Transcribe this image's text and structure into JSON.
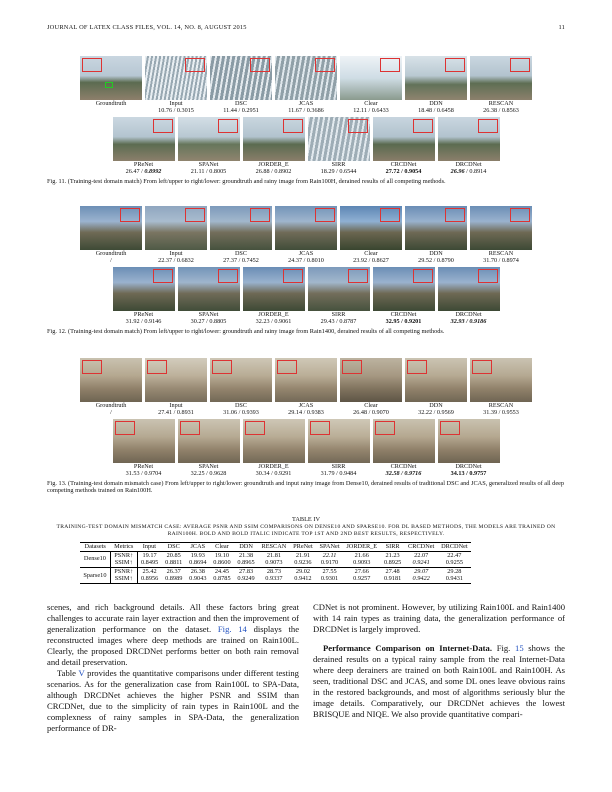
{
  "header": {
    "journal": "JOURNAL OF LATEX CLASS FILES, VOL. 14, NO. 8, AUGUST 2015",
    "page_number": "11"
  },
  "fig11": {
    "row1": [
      {
        "name": "Groundtruth",
        "score": ""
      },
      {
        "name": "Input",
        "score": "10.76 / 0.3015"
      },
      {
        "name": "DSC",
        "score": "11.44 / 0.2951"
      },
      {
        "name": "JCAS",
        "score": "11.67 / 0.3686"
      },
      {
        "name": "Clear",
        "score": "12.11 / 0.6433"
      },
      {
        "name": "DDN",
        "score": "18.48 / 0.6458"
      },
      {
        "name": "RESCAN",
        "score": "26.38 / 0.8563"
      }
    ],
    "row2": [
      {
        "name": "PReNet",
        "psnr": "26.47 / ",
        "ssim": "0.8992"
      },
      {
        "name": "SPANet",
        "psnr": "21.11 / 0.8005",
        "ssim": ""
      },
      {
        "name": "JORDER_E",
        "psnr": "26.88 / 0.8902",
        "ssim": ""
      },
      {
        "name": "SIRR",
        "psnr": "18.29 / 0.6544",
        "ssim": ""
      },
      {
        "name": "CRCDNet",
        "psnr": "27.72 / 0.9054",
        "ssim": ""
      },
      {
        "name": "DRCDNet",
        "psnr": "26.96",
        "ssim": " / 0.8914"
      }
    ],
    "caption": "Fig. 11.  (Training-test domain match) From left/upper to right/lower: groundtruth and rainy image from Rain100H, derained results of all competing methods."
  },
  "fig12": {
    "row1": [
      {
        "name": "Groundtruth",
        "score": "/"
      },
      {
        "name": "Input",
        "score": "22.37 / 0.6832"
      },
      {
        "name": "DSC",
        "score": "27.37 / 0.7452"
      },
      {
        "name": "JCAS",
        "score": "24.37 / 0.8010"
      },
      {
        "name": "Clear",
        "score": "23.92 / 0.8627"
      },
      {
        "name": "DDN",
        "score": "29.52 / 0.8790"
      },
      {
        "name": "RESCAN",
        "score": "31.70 / 0.8974"
      }
    ],
    "row2": [
      {
        "name": "PReNet",
        "score": "31.92 / 0.9146"
      },
      {
        "name": "SPANet",
        "score": "30.27 / 0.8805"
      },
      {
        "name": "JORDER_E",
        "score": "32.23 / 0.9061"
      },
      {
        "name": "SIRR",
        "score": "29.43 / 0.8787"
      },
      {
        "name": "CRCDNet",
        "score": "32.95 / 0.9201"
      },
      {
        "name": "DRCDNet",
        "score": "32.93 / 0.9186"
      }
    ],
    "caption": "Fig. 12.  (Training-test domain match) From left/upper to right/lower: groundtruth and rainy image from Rain1400, derained results of all competing methods."
  },
  "fig13": {
    "row1": [
      {
        "name": "Groundtruth",
        "score": "/"
      },
      {
        "name": "Input",
        "score": "27.41 / 0.8931"
      },
      {
        "name": "DSC",
        "score": "31.06 / 0.9393"
      },
      {
        "name": "JCAS",
        "score": "29.14 / 0.9383"
      },
      {
        "name": "Clear",
        "score": "26.48 / 0.9070"
      },
      {
        "name": "DDN",
        "score": "32.22 / 0.9569"
      },
      {
        "name": "RESCAN",
        "score": "31.39 / 0.9553"
      }
    ],
    "row2": [
      {
        "name": "PReNet",
        "score": "31.53 / 0.9704"
      },
      {
        "name": "SPANet",
        "score": "32.25 / 0.9628"
      },
      {
        "name": "JORDER_E",
        "score": "30.34 / 0.9291"
      },
      {
        "name": "SIRR",
        "score": "31.79 / 0.9484"
      },
      {
        "name": "CRCDNet",
        "score": "32.58 / 0.9716"
      },
      {
        "name": "DRCDNet",
        "score": "34.13 / 0.9757"
      }
    ],
    "caption": "Fig. 13.  (Training-test domain mismatch case) From left/upper to right/lower: groundtruth and input rainy image from Dense10, derained results of traditional DSC and JCAS, generalized results of all deep competing methods trained on Rain100H."
  },
  "table4": {
    "title": "TABLE IV",
    "caption": "TRAINING-TEST DOMAIN MISMATCH CASE: AVERAGE PSNR AND SSIM COMPARISONS ON DENSE10 AND SPARSE10. FOR DL BASED METHODS, THE MODELS ARE TRAINED ON RAIN100H. BOLD AND BOLD ITALIC INDICATE TOP 1ST AND 2ND BEST RESULTS, RESPECTIVELY.",
    "columns": [
      "Datasets",
      "Metrics",
      "Input",
      "DSC",
      "JCAS",
      "Clear",
      "DDN",
      "RESCAN",
      "PReNet",
      "SPANet",
      "JORDER_E",
      "SIRR",
      "CRCDNet",
      "DRCDNet"
    ],
    "rows": [
      {
        "dataset": "Dense10",
        "metric": "PSNR↑",
        "values": [
          "19.17",
          "20.85",
          "19.93",
          "19.10",
          "21.38",
          "21.81",
          "21.91",
          "22.11",
          "21.66",
          "21.23",
          "22.07",
          "22.47"
        ]
      },
      {
        "dataset": "",
        "metric": "SSIM↑",
        "values": [
          "0.8495",
          "0.8811",
          "0.8694",
          "0.8600",
          "0.8965",
          "0.9073",
          "0.9236",
          "0.9170",
          "0.9093",
          "0.8925",
          "0.9241",
          "0.9255"
        ]
      },
      {
        "dataset": "Sparse10",
        "metric": "PSNR↑",
        "values": [
          "25.42",
          "26.37",
          "26.38",
          "24.45",
          "27.83",
          "28.73",
          "29.02",
          "27.55",
          "27.66",
          "27.48",
          "29.07",
          "29.28"
        ]
      },
      {
        "dataset": "",
        "metric": "SSIM↑",
        "values": [
          "0.8956",
          "0.8989",
          "0.9043",
          "0.8785",
          "0.9249",
          "0.9337",
          "0.9412",
          "0.9301",
          "0.9257",
          "0.9181",
          "0.9422",
          "0.9431"
        ]
      }
    ]
  },
  "body": {
    "left_p1": "scenes, and rich background details. All these factors bring great challenges to accurate rain layer extraction and then the improvement of generalization performance on the dataset.",
    "left_p1_ref": "Fig. 14",
    "left_p1_rest": " displays the reconstructed images where deep methods are trained on Rain100L. Clearly, the proposed DRCDNet performs better on both rain removal and detail preservation.",
    "left_p2_start": "Table ",
    "left_p2_ref": "V",
    "left_p2_rest": " provides the quantitative comparisons under different testing scenarios. As for the generalization case from Rain100L to SPA-Data, although DRCDNet achieves the higher PSNR and SSIM than CRCDNet, due to the simplicity of rain types in Rain100L and the complexness of rainy samples in SPA-Data, the generalization performance of DR-",
    "right_p1": "CDNet is not prominent. However, by utilizing Rain100L and Rain1400 with 14 rain types as training data, the generalization performance of DRCDNet is largely improved.",
    "right_p2_head": "Performance Comparison on Internet-Data.",
    "right_p2_mid": " Fig. ",
    "right_p2_ref": "15",
    "right_p2_rest": " shows the derained results on a typical rainy sample from the real Internet-Data where deep derainers are trained on both Rain100L and Rain100H. As seen, traditional DSC and JCAS, and some DL ones leave obvious rains in the restored backgrounds, and most of algorithms seriously blur the image details. Comparatively, our DRCDNet achieves the lowest BRISQUE and NIQE. We also provide quantitative compari-"
  },
  "colors": {
    "inset_red": "#d33333",
    "inset_green": "#22cc22",
    "link_blue": "#1f4fbf"
  }
}
